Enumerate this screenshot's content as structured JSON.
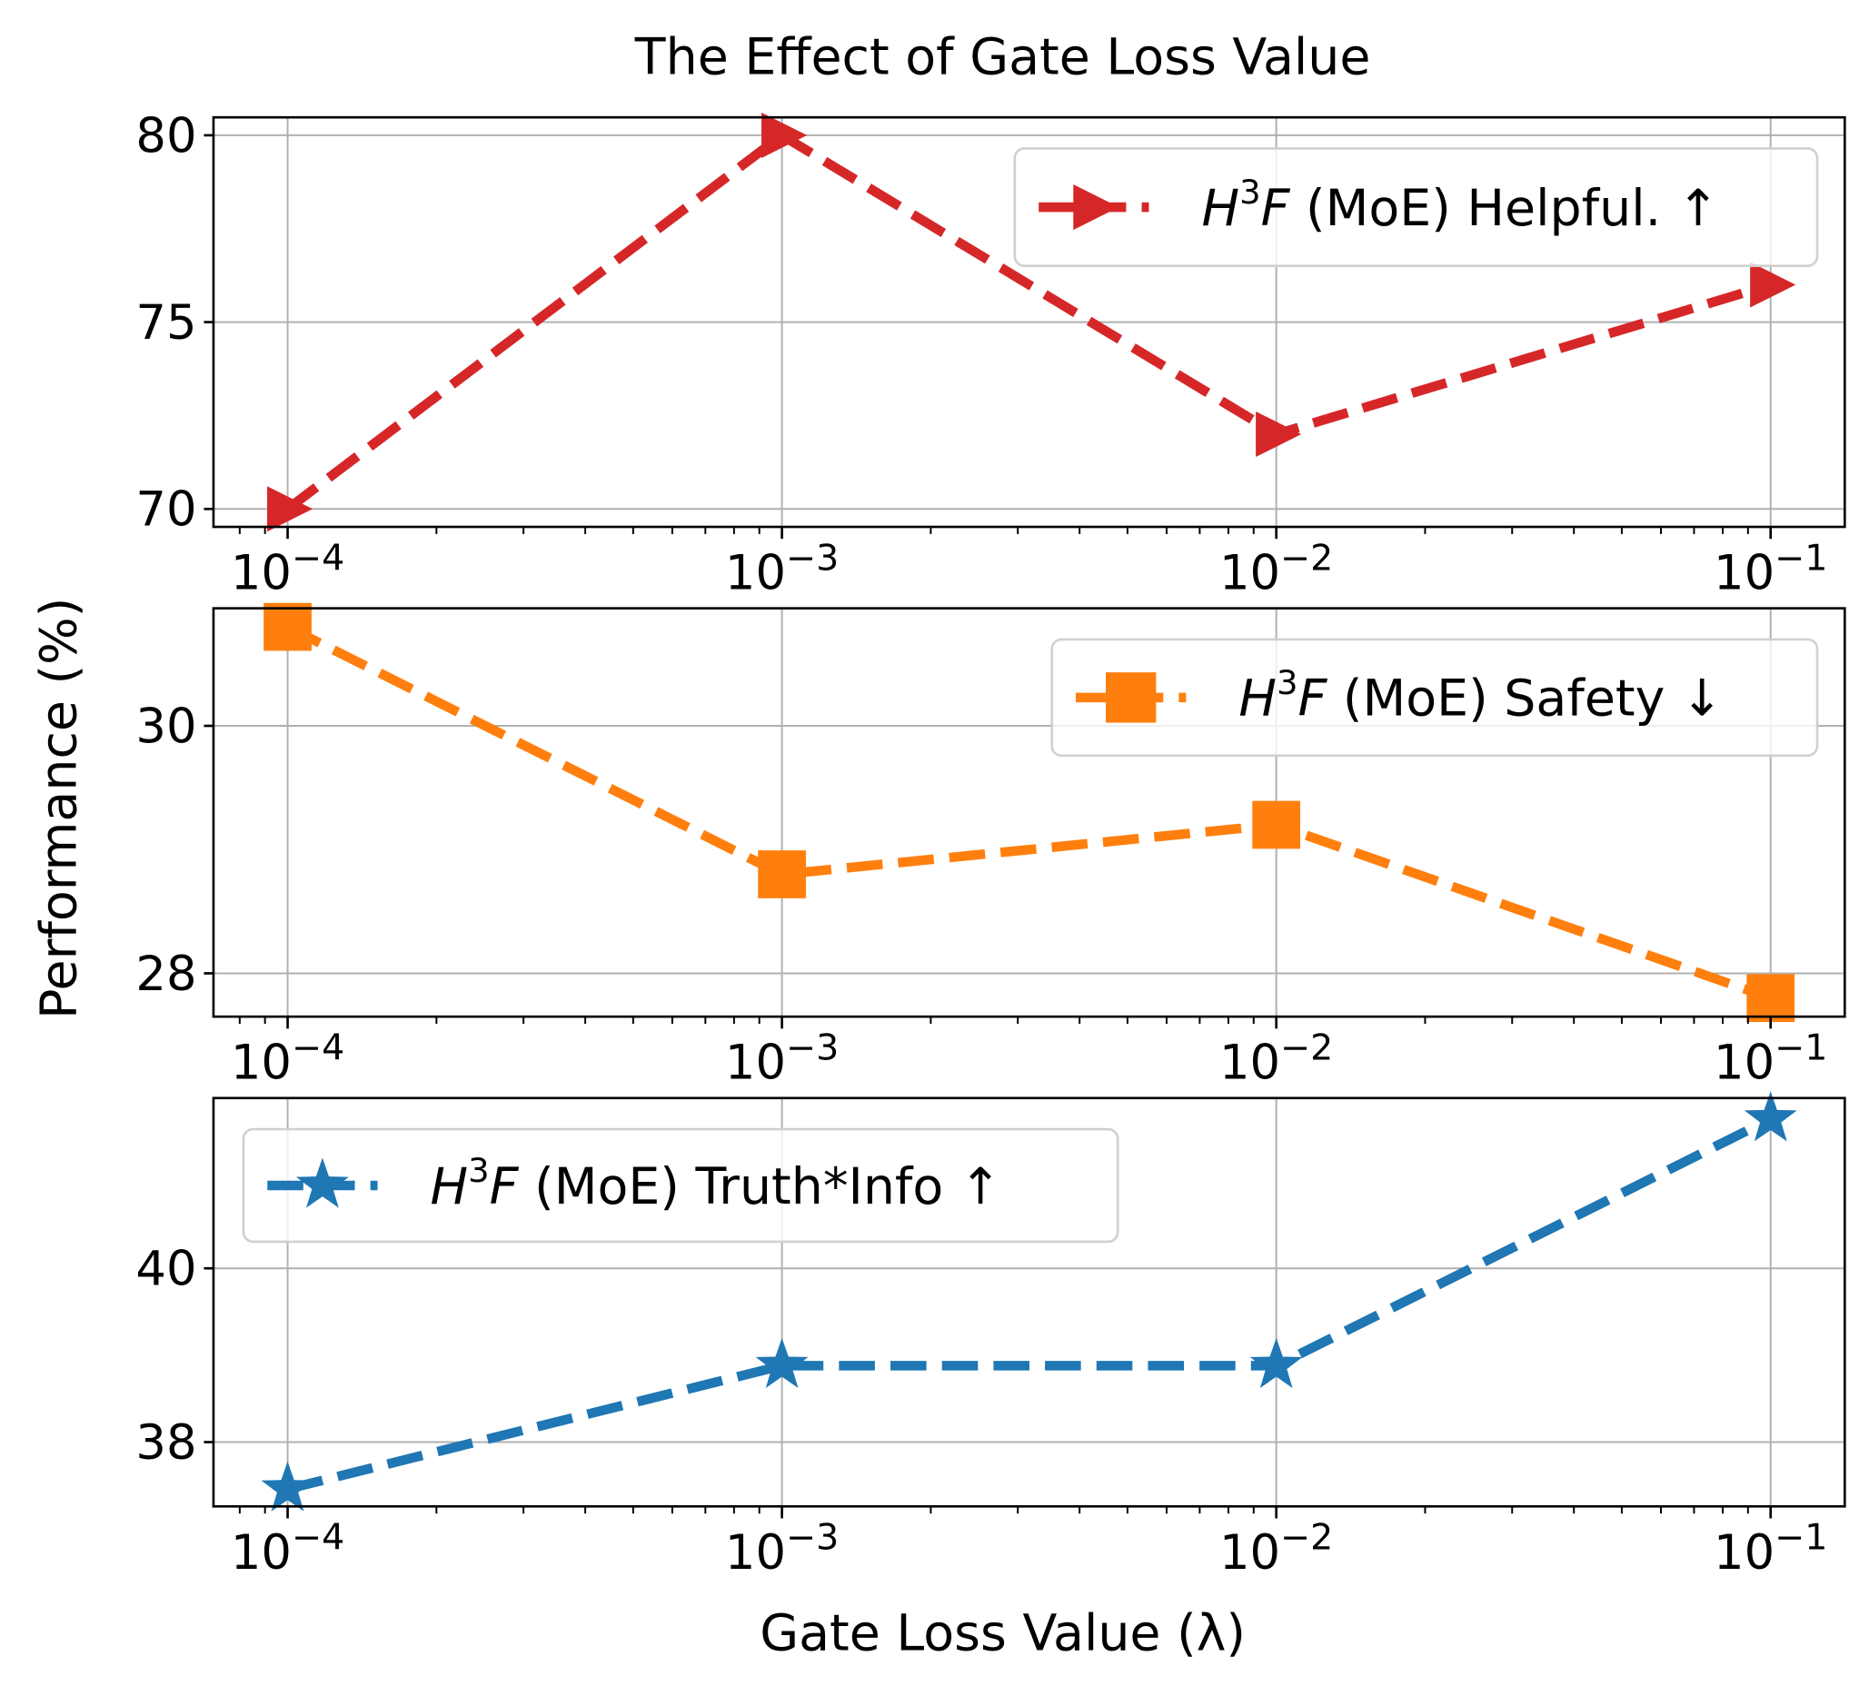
{
  "chart_data": {
    "type": "line",
    "title": "The Effect of Gate Loss Value",
    "xlabel": "Gate Loss Value (λ)",
    "ylabel": "Performance (%)",
    "x_scale": "log",
    "x": [
      0.0001,
      0.001,
      0.01,
      0.1
    ],
    "x_tick_labels": [
      {
        "base": "10",
        "exp": "−4"
      },
      {
        "base": "10",
        "exp": "−3"
      },
      {
        "base": "10",
        "exp": "−2"
      },
      {
        "base": "10",
        "exp": "−1"
      }
    ],
    "xlim_log10": [
      -4.15,
      -0.85
    ],
    "grid": true,
    "panels": [
      {
        "series_name": "H3F (MoE) Helpful. ↑",
        "legend": {
          "h": "H",
          "sup": "3",
          "f": "F",
          "rest": " (MoE) Helpful. ↑",
          "placement": "upper-right"
        },
        "color": "#d62728",
        "marker": "triangle-right",
        "values": [
          70.0,
          80.0,
          72.0,
          76.0
        ],
        "ylim": [
          69.52,
          80.48
        ],
        "yticks": [
          70,
          75,
          80
        ]
      },
      {
        "series_name": "H3F (MoE) Safety ↓",
        "legend": {
          "h": "H",
          "sup": "3",
          "f": "F",
          "rest": " (MoE) Safety ↓",
          "placement": "upper-right"
        },
        "color": "#ff7f0e",
        "marker": "square",
        "values": [
          30.8,
          28.8,
          29.2,
          27.8
        ],
        "ylim": [
          27.65,
          30.95
        ],
        "yticks": [
          28,
          30
        ]
      },
      {
        "series_name": "H3F (MoE) Truth*Info ↑",
        "legend": {
          "h": "H",
          "sup": "3",
          "f": "F",
          "rest": " (MoE) Truth*Info ↑",
          "placement": "upper-left"
        },
        "color": "#1f77b4",
        "marker": "star",
        "values": [
          37.46,
          38.88,
          38.88,
          41.72
        ],
        "ylim": [
          37.26,
          41.96
        ],
        "yticks": [
          38,
          40
        ]
      }
    ]
  }
}
